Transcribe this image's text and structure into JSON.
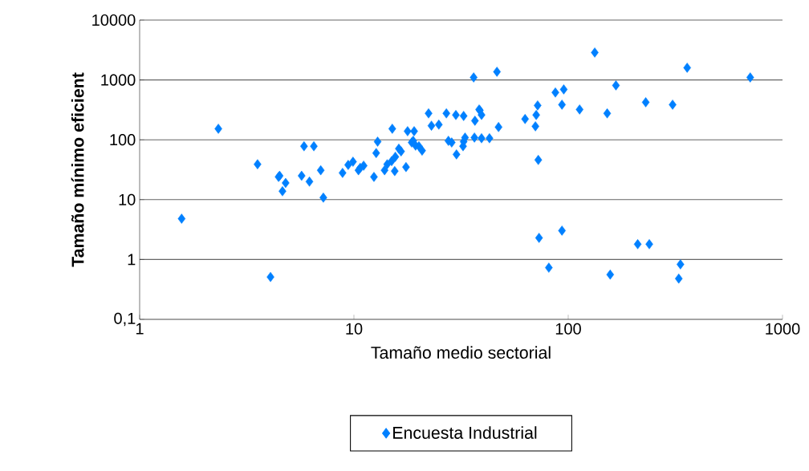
{
  "chart_data": {
    "type": "scatter",
    "xlabel": "Tamaño medio sectorial",
    "ylabel": "Tamaño mínimo eficient",
    "log": "xy",
    "grid": "y",
    "legend": "bottom",
    "marker": "diamond",
    "xlim": [
      1,
      1000
    ],
    "ylim": [
      0.1,
      10000
    ],
    "xticks": [
      1,
      10,
      100,
      1000
    ],
    "yticks": [
      {
        "value": 0.1,
        "label": "0,1"
      },
      1,
      10,
      100,
      1000,
      10000
    ],
    "series": [
      {
        "name": "Encuesta Industrial",
        "color": "#0080ff",
        "x": [
          1.57,
          2.33,
          3.55,
          4.08,
          4.45,
          4.5,
          4.64,
          4.8,
          5.7,
          5.85,
          6.2,
          6.5,
          7.0,
          7.2,
          8.85,
          9.4,
          9.9,
          10.5,
          10.7,
          11.1,
          12.4,
          12.7,
          12.9,
          13.9,
          14.3,
          15.0,
          15.1,
          15.5,
          15.6,
          16.2,
          16.6,
          17.5,
          17.8,
          18.6,
          18.9,
          19.1,
          19.4,
          20.1,
          20.8,
          22.3,
          23.0,
          24.9,
          27.0,
          27.6,
          28.6,
          29.9,
          30.1,
          32.5,
          32.3,
          32.5,
          33.0,
          36.2,
          36.7,
          36.5,
          38.4,
          38.7,
          39.4,
          39.4,
          42.9,
          46.5,
          47.3,
          62.9,
          70.9,
          70.3,
          72.0,
          72.5,
          73.1,
          81.2,
          87.1,
          93.5,
          93.5,
          95.3,
          113,
          133,
          152,
          157,
          167,
          211,
          239,
          230,
          307,
          334,
          328,
          359,
          707
        ],
        "values": [
          4.8,
          153,
          39,
          0.51,
          24,
          25,
          13.8,
          19,
          25,
          78,
          20,
          78,
          31,
          10.8,
          28,
          38,
          43,
          31,
          34,
          37,
          24,
          60,
          93,
          31,
          39,
          44,
          153,
          30,
          52,
          71,
          64,
          35,
          139,
          90,
          96,
          139,
          80,
          78,
          66,
          276,
          172,
          179,
          276,
          96,
          90,
          259,
          57,
          250,
          78,
          93,
          109,
          1100,
          208,
          109,
          321,
          310,
          260,
          106,
          106,
          1370,
          163,
          222,
          259,
          168,
          375,
          46,
          2.3,
          0.73,
          616,
          3.04,
          386,
          695,
          321,
          2870,
          276,
          0.56,
          811,
          1.8,
          1.8,
          424,
          386,
          0.83,
          0.48,
          1600,
          1100
        ]
      }
    ]
  }
}
